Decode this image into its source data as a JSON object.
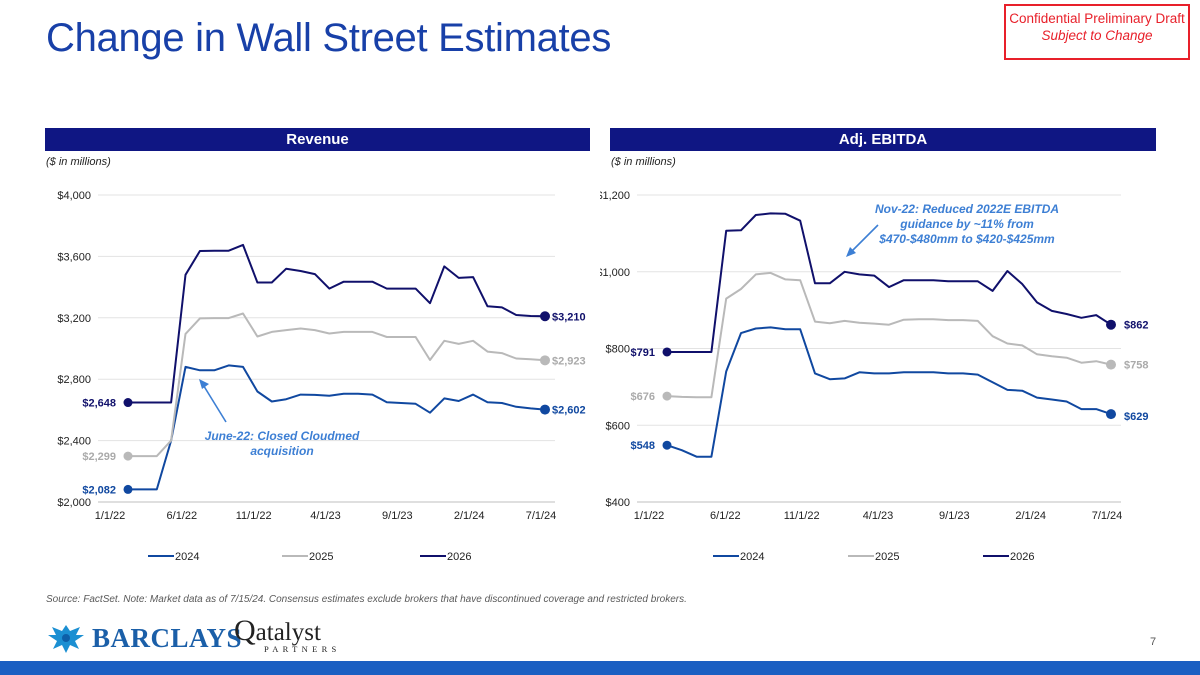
{
  "page": {
    "title": "Change in Wall Street Estimates",
    "draft_line1": "Confidential Preliminary Draft",
    "draft_line2": "Subject to Change",
    "footnote": "Source: FactSet. Note: Market data as of 7/15/24. Consensus estimates exclude brokers that have discontinued coverage and restricted brokers.",
    "page_number": "7",
    "logo_barclays": "BARCLAYS",
    "logo_qatalyst_q": "Q",
    "logo_qatalyst": "atalyst",
    "logo_qatalyst_sub": "PARTNERS"
  },
  "colors": {
    "s2024": "#1048a0",
    "s2025": "#b9b9b9",
    "s2026": "#10106b",
    "annotation": "#3d7fd4",
    "header": "#0f1683"
  },
  "chart_data": [
    {
      "type": "line",
      "title": "Revenue",
      "units": "($ in millions)",
      "x_tick_labels": [
        "1/1/22",
        "6/1/22",
        "11/1/22",
        "4/1/23",
        "9/1/23",
        "2/1/24",
        "7/1/24"
      ],
      "y_tick_labels": [
        "$2,000",
        "$2,400",
        "$2,800",
        "$3,200",
        "$3,600",
        "$4,000"
      ],
      "ylim": [
        2000,
        4000
      ],
      "y_ticks": [
        2000,
        2400,
        2800,
        3200,
        3600,
        4000
      ],
      "series": [
        {
          "name": "2024",
          "color": "#1048a0",
          "start_label": "$2,082",
          "end_label": "$2,602",
          "values": [
            2082,
            2082,
            2082,
            2400,
            2880,
            2858,
            2858,
            2890,
            2880,
            2720,
            2655,
            2670,
            2700,
            2698,
            2692,
            2705,
            2705,
            2700,
            2650,
            2645,
            2640,
            2582,
            2675,
            2658,
            2700,
            2650,
            2645,
            2620,
            2610,
            2602
          ]
        },
        {
          "name": "2025",
          "color": "#b9b9b9",
          "start_label": "$2,299",
          "end_label": "$2,923",
          "values": [
            2299,
            2299,
            2299,
            2400,
            3095,
            3196,
            3198,
            3198,
            3228,
            3078,
            3108,
            3120,
            3130,
            3120,
            3098,
            3108,
            3108,
            3108,
            3075,
            3075,
            3075,
            2925,
            3050,
            3030,
            3050,
            2980,
            2970,
            2935,
            2930,
            2923
          ]
        },
        {
          "name": "2026",
          "color": "#10106b",
          "start_label": "$2,648",
          "end_label": "$3,210",
          "values": [
            2648,
            2648,
            2648,
            2648,
            3480,
            3635,
            3637,
            3637,
            3675,
            3430,
            3430,
            3520,
            3505,
            3485,
            3390,
            3435,
            3435,
            3435,
            3390,
            3390,
            3390,
            3295,
            3535,
            3460,
            3465,
            3275,
            3268,
            3218,
            3212,
            3210
          ]
        }
      ],
      "annotation": "June-22: Closed Cloudmed acquisition",
      "legend": [
        "2024",
        "2025",
        "2026"
      ],
      "legend_position": "bottom"
    },
    {
      "type": "line",
      "title": "Adj. EBITDA",
      "units": "($ in millions)",
      "x_tick_labels": [
        "1/1/22",
        "6/1/22",
        "11/1/22",
        "4/1/23",
        "9/1/23",
        "2/1/24",
        "7/1/24"
      ],
      "y_tick_labels": [
        "$400",
        "$600",
        "$800",
        "$1,000",
        "$1,200"
      ],
      "ylim": [
        400,
        1200
      ],
      "y_ticks": [
        400,
        600,
        800,
        1000,
        1200
      ],
      "series": [
        {
          "name": "2024",
          "color": "#1048a0",
          "start_label": "$548",
          "end_label": "$629",
          "values": [
            548,
            535,
            518,
            518,
            740,
            840,
            852,
            855,
            850,
            850,
            735,
            720,
            722,
            738,
            735,
            735,
            738,
            738,
            738,
            735,
            735,
            732,
            712,
            692,
            690,
            672,
            667,
            662,
            642,
            642,
            629
          ]
        },
        {
          "name": "2025",
          "color": "#b9b9b9",
          "start_label": "$676",
          "end_label": "$758",
          "values": [
            676,
            674,
            673,
            673,
            930,
            955,
            993,
            997,
            980,
            978,
            870,
            866,
            872,
            867,
            865,
            862,
            875,
            876,
            876,
            874,
            874,
            872,
            832,
            813,
            808,
            785,
            780,
            776,
            763,
            767,
            758
          ]
        },
        {
          "name": "2026",
          "color": "#10106b",
          "start_label": "$791",
          "end_label": "$862",
          "values": [
            791,
            791,
            791,
            791,
            1107,
            1108,
            1148,
            1152,
            1151,
            1133,
            970,
            970,
            1000,
            993,
            990,
            960,
            978,
            978,
            978,
            975,
            975,
            975,
            950,
            1002,
            968,
            920,
            898,
            890,
            880,
            887,
            862
          ]
        }
      ],
      "annotation": "Nov-22: Reduced 2022E EBITDA guidance by ~11% from $470-$480mm to $420-$425mm",
      "legend": [
        "2024",
        "2025",
        "2026"
      ],
      "legend_position": "bottom"
    }
  ]
}
